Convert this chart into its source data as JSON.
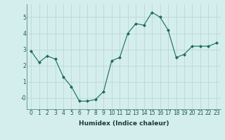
{
  "x": [
    0,
    1,
    2,
    3,
    4,
    5,
    6,
    7,
    8,
    9,
    10,
    11,
    12,
    13,
    14,
    15,
    16,
    17,
    18,
    19,
    20,
    21,
    22,
    23
  ],
  "y": [
    2.9,
    2.2,
    2.6,
    2.4,
    1.3,
    0.7,
    -0.2,
    -0.2,
    -0.1,
    0.4,
    2.3,
    2.5,
    4.0,
    4.6,
    4.5,
    5.3,
    5.0,
    4.2,
    2.5,
    2.7,
    3.2,
    3.2,
    3.2,
    3.4
  ],
  "xlabel": "Humidex (Indice chaleur)",
  "xlim": [
    -0.5,
    23.5
  ],
  "ylim": [
    -0.7,
    5.8
  ],
  "yticks": [
    0,
    1,
    2,
    3,
    4,
    5
  ],
  "ytick_labels": [
    "-0",
    "1",
    "2",
    "3",
    "4",
    "5"
  ],
  "xticks": [
    0,
    1,
    2,
    3,
    4,
    5,
    6,
    7,
    8,
    9,
    10,
    11,
    12,
    13,
    14,
    15,
    16,
    17,
    18,
    19,
    20,
    21,
    22,
    23
  ],
  "line_color": "#1a6b5e",
  "marker": "D",
  "marker_size": 2.0,
  "bg_color": "#d4eded",
  "grid_color": "#b8d4d4",
  "axes_bg": "#d4eded",
  "tick_fontsize": 5.5,
  "xlabel_fontsize": 6.5,
  "xlabel_fontweight": "bold"
}
